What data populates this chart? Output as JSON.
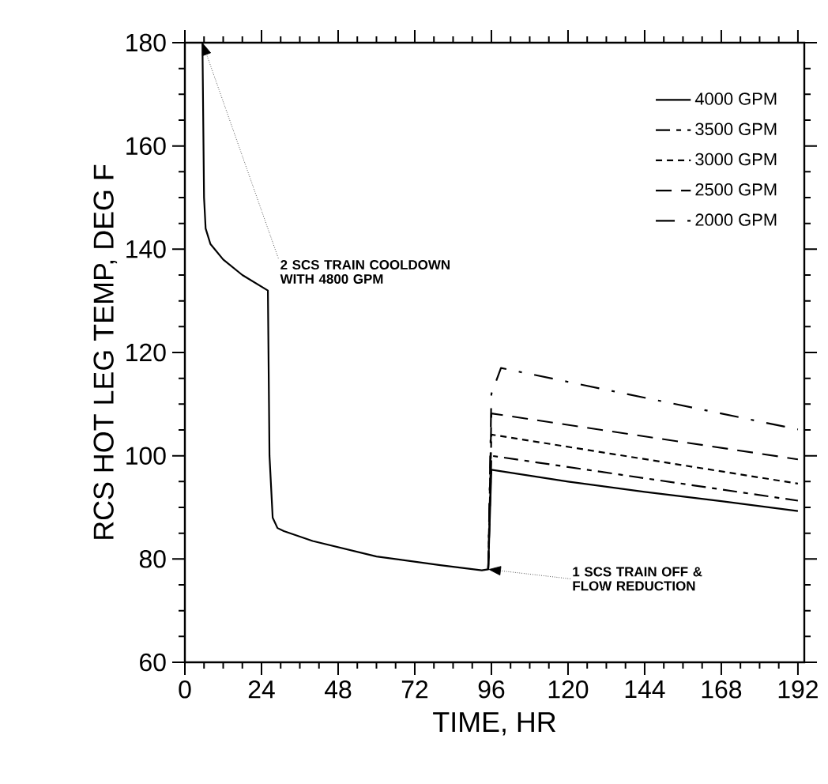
{
  "chart_data": {
    "type": "line",
    "xlabel": "TIME, HR",
    "ylabel": "RCS HOT LEG TEMP, DEG F",
    "xlim": [
      0,
      194
    ],
    "ylim": [
      60,
      180
    ],
    "xticks": [
      0,
      24,
      48,
      72,
      96,
      120,
      144,
      168,
      192
    ],
    "yticks": [
      60,
      80,
      100,
      120,
      140,
      160,
      180
    ],
    "grid": false,
    "legend": "top right",
    "marker": "none",
    "series": [
      {
        "name": "4000 GPM",
        "color": "#000000",
        "line_style": "solid",
        "x": [
          5.5,
          6,
          6.5,
          8,
          12,
          18,
          26,
          26.5,
          27.5,
          29,
          31,
          40,
          60,
          80,
          93,
          95,
          96,
          120,
          144,
          168,
          192
        ],
        "values": [
          180,
          150,
          144,
          141,
          138,
          135,
          132,
          100,
          88,
          86,
          85.4,
          83.5,
          80.5,
          78.8,
          77.8,
          78,
          97.3,
          95,
          93,
          91.2,
          89.3
        ]
      },
      {
        "name": "3500 GPM",
        "color": "#000000",
        "line_style": "dashed",
        "x": [
          95,
          96,
          192
        ],
        "values": [
          78,
          100,
          91.3
        ]
      },
      {
        "name": "3000 GPM",
        "color": "#000000",
        "line_style": "dashed",
        "x": [
          95,
          96,
          192
        ],
        "values": [
          78,
          104.1,
          94.6
        ]
      },
      {
        "name": "2500 GPM",
        "color": "#000000",
        "line_style": "dashed",
        "x": [
          95,
          96,
          192
        ],
        "values": [
          78,
          108.2,
          99.3
        ]
      },
      {
        "name": "2000 GPM",
        "color": "#000000",
        "line_style": "dashed",
        "x": [
          95,
          96,
          99,
          192
        ],
        "values": [
          78,
          112,
          117,
          105.1
        ]
      }
    ],
    "annotations": [
      {
        "text": "2 SCS TRAIN COOLDOWN WITH 4800 GPM",
        "x": 5.5,
        "y": 180
      },
      {
        "text": "1 SCS TRAIN OFF & FLOW REDUCTION",
        "x": 95,
        "y": 78
      }
    ]
  }
}
